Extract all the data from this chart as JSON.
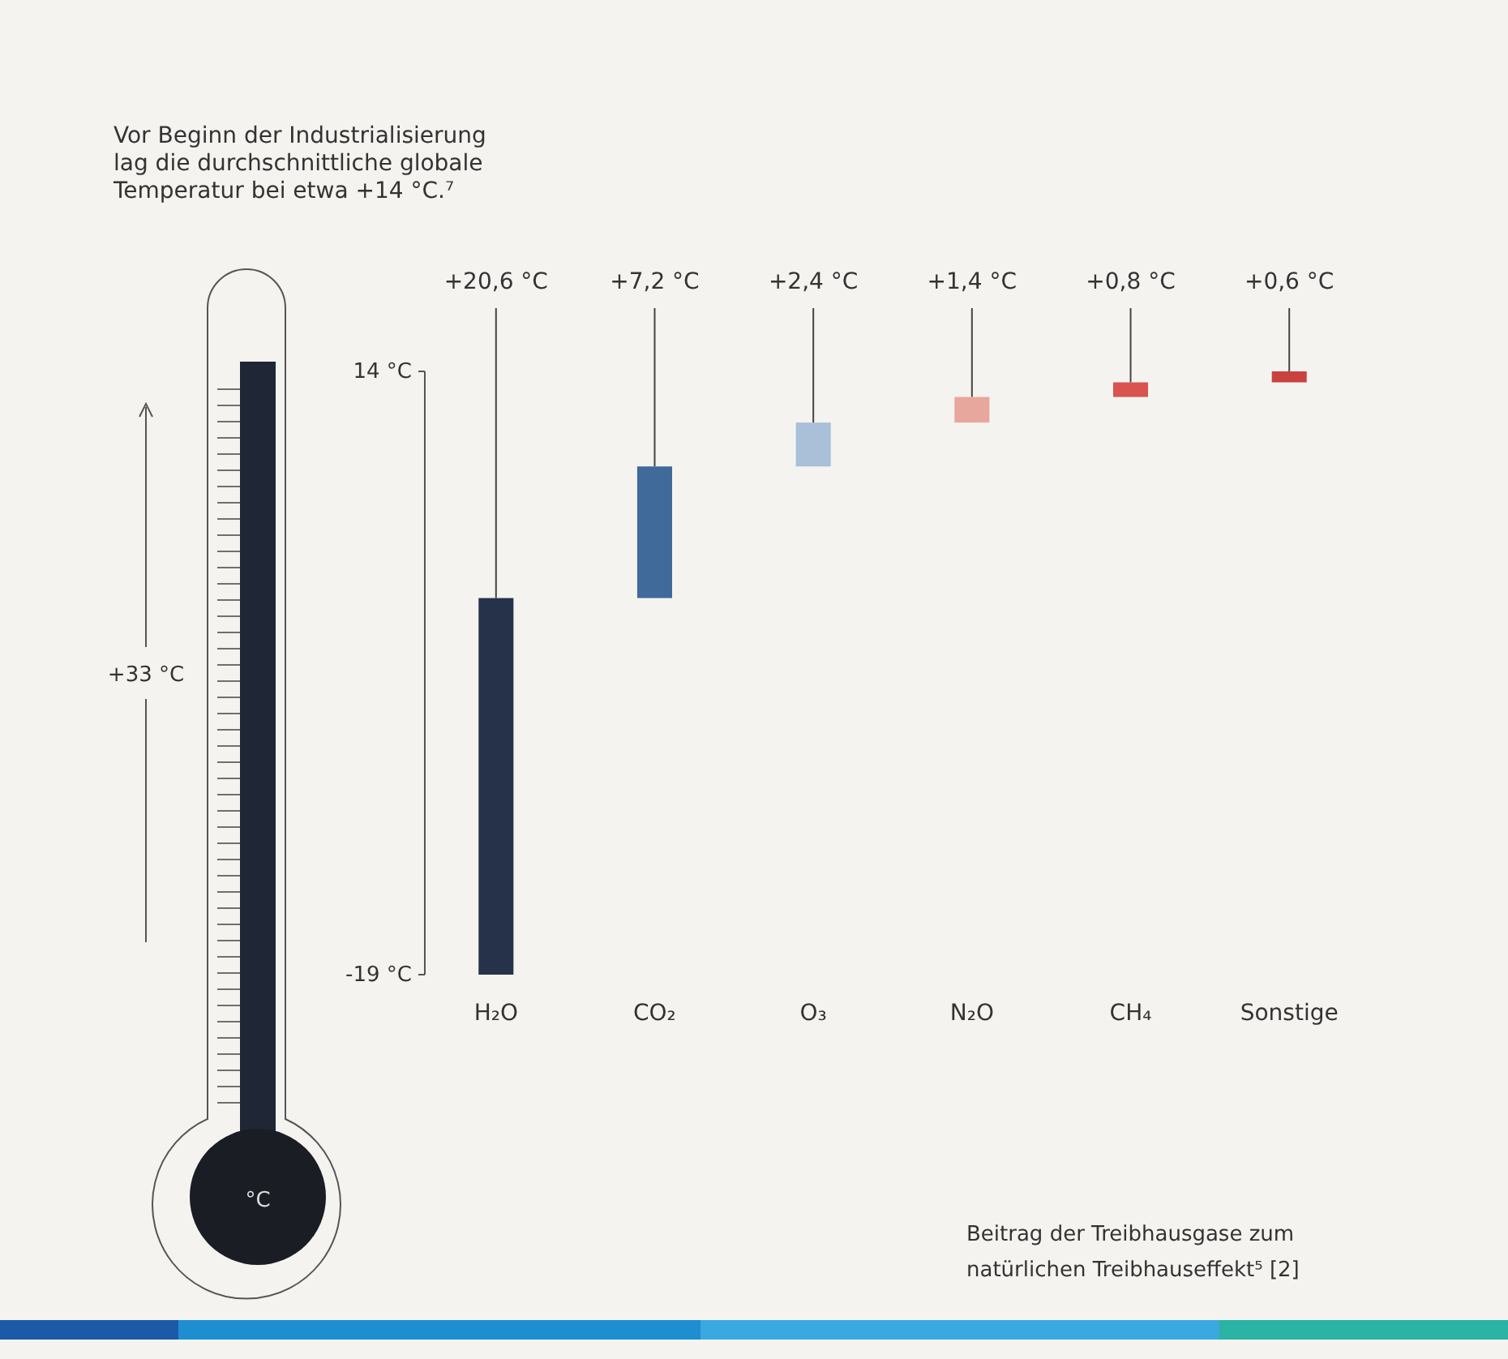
{
  "chart_data": {
    "type": "bar",
    "title": "Vor Beginn der Industrialisierung lag die durchschnittliche globale Temperatur bei etwa +14 °C.⁷",
    "categories": [
      "H₂O",
      "CO₂",
      "O₃",
      "N₂O",
      "CH₄",
      "Sonstige"
    ],
    "base": [
      -19,
      1.6,
      8.8,
      11.2,
      12.6,
      13.4
    ],
    "values": [
      20.6,
      7.2,
      2.4,
      1.4,
      0.8,
      0.6
    ],
    "value_labels": [
      "+20,6 °C",
      "+7,2 °C",
      "+2,4 °C",
      "+1,4 °C",
      "+0,8 °C",
      "+0,6 °C"
    ],
    "colors": [
      "#25324a",
      "#3f6a9a",
      "#a9c0d8",
      "#e8a79c",
      "#d9534f",
      "#c9423f"
    ],
    "ylim": [
      -19,
      14
    ],
    "yticks": [
      {
        "value": -19,
        "label": "-19 °C"
      },
      {
        "value": 14,
        "label": "14 °C"
      }
    ],
    "annotations": [
      "+33 °C",
      "°C",
      "Beitrag der Treibhausgase zum natürlichen Treibhauseffekt⁵ [2]"
    ]
  }
}
